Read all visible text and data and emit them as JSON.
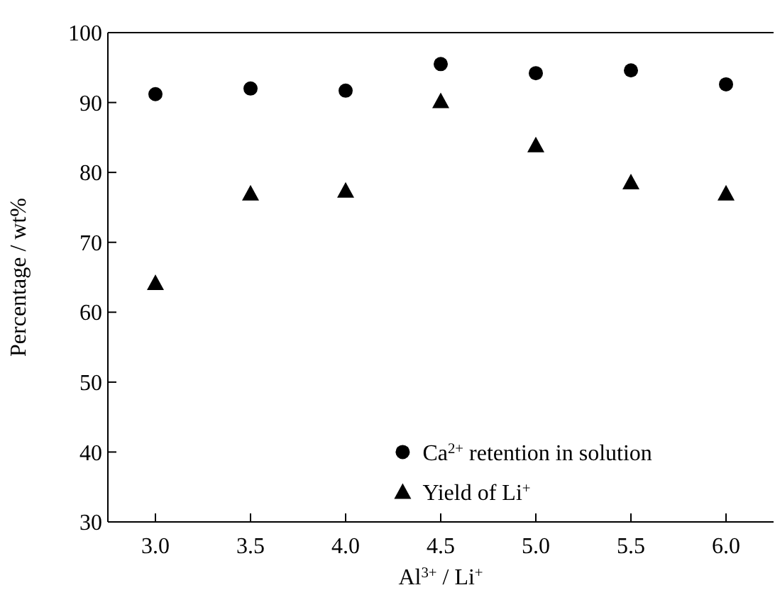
{
  "chart_data": {
    "type": "scatter",
    "xlabel": "Al$^{3+}$ / Li$^{+}$",
    "ylabel": "Percentage / wt%",
    "x": [
      3.0,
      3.5,
      4.0,
      4.5,
      5.0,
      5.5,
      6.0
    ],
    "series": [
      {
        "name": "Ca$^{2+}$ retention in solution",
        "color": "#000000",
        "marker": "circle",
        "values": [
          91.2,
          92.0,
          91.7,
          95.5,
          94.2,
          94.6,
          92.6
        ]
      },
      {
        "name": "Yield of Li$^{+}$",
        "color": "#000000",
        "marker": "triangle",
        "values": [
          64.2,
          77.0,
          77.4,
          90.2,
          83.9,
          78.6,
          77.0
        ]
      }
    ],
    "xlim": [
      2.75,
      6.25
    ],
    "xticks": [
      {
        "value": 3,
        "label": "3.0"
      },
      {
        "value": 3.5,
        "label": "3.5"
      },
      {
        "value": 4,
        "label": "4.0"
      },
      {
        "value": 4.5,
        "label": "4.5"
      },
      {
        "value": 5,
        "label": "5.0"
      },
      {
        "value": 5.5,
        "label": "5.5"
      },
      {
        "value": 6,
        "label": "6.0"
      }
    ],
    "ylim": [
      30,
      100
    ],
    "yticks": [
      30,
      40,
      50,
      60,
      70,
      80,
      90,
      100
    ],
    "grid": false,
    "legend": "bottom right"
  }
}
